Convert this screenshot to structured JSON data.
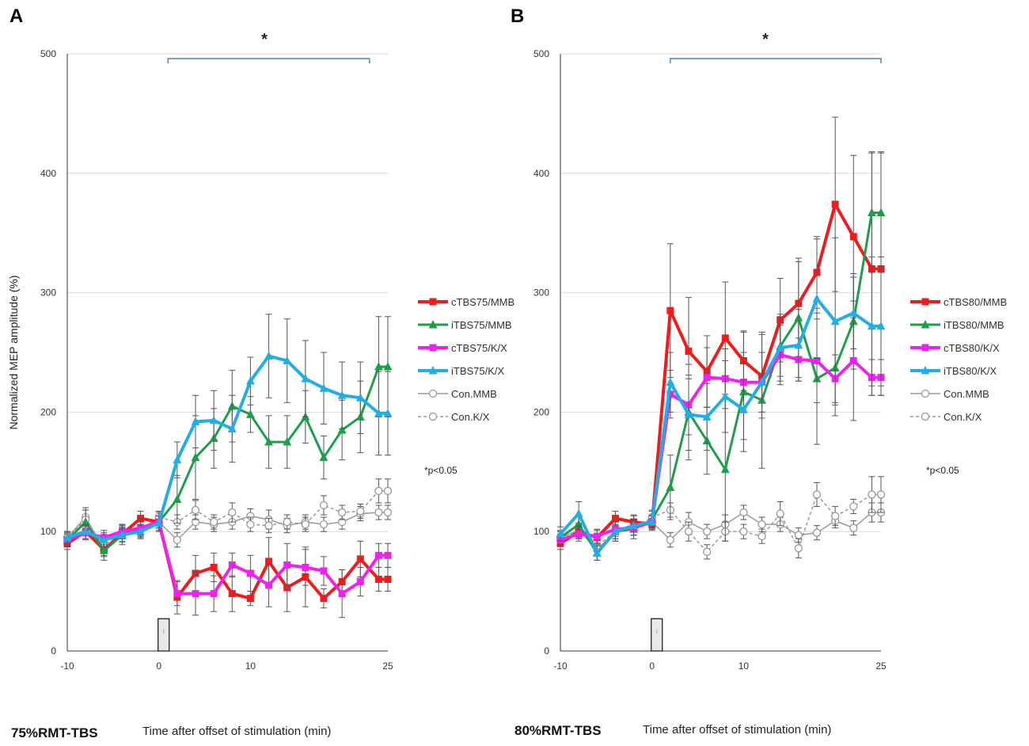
{
  "chart_data": [
    {
      "type": "line",
      "panel_label": "A",
      "condition_label": "75%RMT-TBS",
      "xlabel": "Time after offset of stimulation (min)",
      "ylabel": "Normalized MEP amplitude (%)",
      "ylim": [
        0,
        500
      ],
      "y_ticks": [
        0,
        100,
        200,
        300,
        400,
        500
      ],
      "xlim": [
        -10,
        25
      ],
      "x_ticks": [
        -10,
        0,
        10,
        25
      ],
      "grid": true,
      "significance": "*",
      "significance_range": [
        1,
        23
      ],
      "p_note": "*p<0.05",
      "legend_position": "right",
      "series": [
        {
          "name": "cTBS75/MMB",
          "color": "#ee1c1c",
          "marker": "square",
          "style": "solid",
          "width": 4,
          "x": [
            -10,
            -8,
            -6,
            -4,
            -2,
            0,
            2,
            4,
            6,
            8,
            10,
            12,
            14,
            16,
            18,
            20,
            22,
            24,
            25
          ],
          "y": [
            90,
            100,
            85,
            98,
            111,
            108,
            45,
            65,
            70,
            48,
            44,
            75,
            53,
            62,
            44,
            58,
            77,
            60,
            60
          ],
          "err": [
            5,
            6,
            6,
            6,
            6,
            5,
            14,
            15,
            12,
            15,
            6,
            20,
            20,
            25,
            8,
            10,
            15,
            10,
            10
          ]
        },
        {
          "name": "iTBS75/MMB",
          "color": "#1e9e4a",
          "marker": "triangle",
          "style": "solid",
          "width": 3,
          "x": [
            -10,
            -8,
            -6,
            -4,
            -2,
            0,
            2,
            4,
            6,
            8,
            10,
            12,
            14,
            16,
            18,
            20,
            22,
            24,
            25
          ],
          "y": [
            93,
            108,
            84,
            97,
            103,
            108,
            127,
            162,
            178,
            205,
            198,
            175,
            175,
            196,
            162,
            185,
            196,
            238,
            238
          ],
          "err": [
            6,
            10,
            8,
            8,
            8,
            8,
            20,
            35,
            25,
            30,
            15,
            22,
            22,
            22,
            18,
            25,
            30,
            42,
            42
          ]
        },
        {
          "name": "cTBS75/K/X",
          "color": "#ee22ee",
          "marker": "square",
          "style": "solid",
          "width": 4,
          "x": [
            -10,
            -8,
            -6,
            -4,
            -2,
            0,
            2,
            4,
            6,
            8,
            10,
            12,
            14,
            16,
            18,
            20,
            22,
            24,
            25
          ],
          "y": [
            93,
            99,
            95,
            100,
            103,
            108,
            48,
            48,
            48,
            72,
            65,
            55,
            72,
            70,
            67,
            48,
            58,
            80,
            80
          ],
          "err": [
            5,
            6,
            6,
            6,
            6,
            5,
            10,
            18,
            15,
            10,
            15,
            18,
            18,
            15,
            12,
            20,
            12,
            10,
            10
          ]
        },
        {
          "name": "iTBS75/K/X",
          "color": "#22aee4",
          "marker": "triangle",
          "style": "solid",
          "width": 4,
          "x": [
            -10,
            -8,
            -6,
            -4,
            -2,
            0,
            2,
            4,
            6,
            8,
            10,
            12,
            14,
            16,
            18,
            20,
            22,
            24,
            25
          ],
          "y": [
            95,
            100,
            93,
            97,
            100,
            107,
            160,
            192,
            193,
            186,
            226,
            247,
            243,
            228,
            220,
            214,
            212,
            199,
            199
          ],
          "err": [
            5,
            6,
            6,
            6,
            6,
            6,
            15,
            22,
            25,
            28,
            20,
            35,
            35,
            32,
            30,
            28,
            30,
            35,
            35
          ]
        },
        {
          "name": "Con.MMB",
          "color": "#999999",
          "marker": "circle",
          "style": "solid",
          "width": 1.5,
          "x": [
            -10,
            -8,
            -6,
            -4,
            -2,
            0,
            2,
            4,
            6,
            8,
            10,
            12,
            14,
            16,
            18,
            20,
            22,
            24,
            25
          ],
          "y": [
            95,
            112,
            85,
            100,
            103,
            108,
            93,
            108,
            106,
            108,
            113,
            110,
            105,
            108,
            106,
            108,
            115,
            116,
            116
          ],
          "err": [
            5,
            8,
            5,
            6,
            6,
            5,
            6,
            6,
            6,
            6,
            6,
            8,
            6,
            6,
            6,
            6,
            6,
            6,
            6
          ]
        },
        {
          "name": "Con.K/X",
          "color": "#999999",
          "marker": "circle",
          "style": "dashed",
          "width": 1.5,
          "x": [
            -10,
            -8,
            -6,
            -4,
            -2,
            0,
            2,
            4,
            6,
            8,
            10,
            12,
            14,
            16,
            18,
            20,
            22,
            24,
            25
          ],
          "y": [
            95,
            110,
            88,
            100,
            102,
            112,
            108,
            118,
            108,
            116,
            106,
            105,
            108,
            106,
            122,
            116,
            117,
            134,
            134
          ],
          "err": [
            5,
            8,
            5,
            6,
            6,
            5,
            6,
            8,
            6,
            8,
            6,
            6,
            6,
            6,
            8,
            6,
            6,
            10,
            10
          ]
        }
      ]
    },
    {
      "type": "line",
      "panel_label": "B",
      "condition_label": "80%RMT-TBS",
      "xlabel": "Time after offset of stimulation (min)",
      "ylabel": "",
      "ylim": [
        0,
        500
      ],
      "y_ticks": [
        0,
        100,
        200,
        300,
        400,
        500
      ],
      "xlim": [
        -10,
        25
      ],
      "x_ticks": [
        -10,
        0,
        10,
        25
      ],
      "grid": true,
      "significance": "*",
      "significance_range": [
        2,
        25
      ],
      "p_note": "*p<0.05",
      "legend_position": "right",
      "series": [
        {
          "name": "cTBS80/MMB",
          "color": "#ee1c1c",
          "marker": "square",
          "style": "solid",
          "width": 4,
          "x": [
            -10,
            -8,
            -6,
            -4,
            -2,
            0,
            2,
            4,
            6,
            8,
            10,
            12,
            14,
            16,
            18,
            20,
            22,
            24,
            25
          ],
          "y": [
            90,
            100,
            95,
            111,
            108,
            106,
            285,
            251,
            234,
            262,
            243,
            230,
            277,
            291,
            317,
            374,
            347,
            320,
            320
          ],
          "err": [
            5,
            6,
            6,
            6,
            6,
            5,
            56,
            45,
            30,
            47,
            25,
            35,
            35,
            35,
            30,
            73,
            68,
            98,
            98
          ]
        },
        {
          "name": "iTBS80/MMB",
          "color": "#1e9e4a",
          "marker": "triangle",
          "style": "solid",
          "width": 3,
          "x": [
            -10,
            -8,
            -6,
            -4,
            -2,
            0,
            2,
            4,
            6,
            8,
            10,
            12,
            14,
            16,
            18,
            20,
            22,
            24,
            25
          ],
          "y": [
            95,
            106,
            82,
            100,
            102,
            110,
            137,
            200,
            176,
            152,
            217,
            210,
            255,
            279,
            228,
            237,
            276,
            367,
            367
          ],
          "err": [
            6,
            8,
            6,
            8,
            8,
            8,
            27,
            40,
            28,
            60,
            50,
            57,
            25,
            50,
            55,
            40,
            40,
            50,
            50
          ]
        },
        {
          "name": "cTBS80/K/X",
          "color": "#ee22ee",
          "marker": "square",
          "style": "solid",
          "width": 4,
          "x": [
            -10,
            -8,
            -6,
            -4,
            -2,
            0,
            2,
            4,
            6,
            8,
            10,
            12,
            14,
            16,
            18,
            20,
            22,
            24,
            25
          ],
          "y": [
            93,
            98,
            96,
            102,
            103,
            108,
            215,
            206,
            229,
            228,
            225,
            225,
            248,
            244,
            243,
            228,
            243,
            229,
            229
          ],
          "err": [
            5,
            6,
            6,
            6,
            6,
            5,
            20,
            25,
            25,
            25,
            25,
            25,
            25,
            18,
            35,
            20,
            50,
            15,
            15
          ]
        },
        {
          "name": "iTBS80/K/X",
          "color": "#22aee4",
          "marker": "triangle",
          "style": "solid",
          "width": 4,
          "x": [
            -10,
            -8,
            -6,
            -4,
            -2,
            0,
            2,
            4,
            6,
            8,
            10,
            12,
            14,
            16,
            18,
            20,
            22,
            24,
            25
          ],
          "y": [
            98,
            115,
            82,
            100,
            105,
            108,
            225,
            198,
            196,
            213,
            202,
            225,
            254,
            256,
            295,
            276,
            283,
            272,
            272
          ],
          "err": [
            6,
            10,
            6,
            8,
            8,
            6,
            25,
            30,
            28,
            30,
            25,
            25,
            28,
            30,
            50,
            70,
            30,
            58,
            58
          ]
        },
        {
          "name": "Con.MMB",
          "color": "#999999",
          "marker": "circle",
          "style": "solid",
          "width": 1.5,
          "x": [
            -10,
            -8,
            -6,
            -4,
            -2,
            0,
            2,
            4,
            6,
            8,
            10,
            12,
            14,
            16,
            18,
            20,
            22,
            24,
            25
          ],
          "y": [
            95,
            101,
            85,
            100,
            103,
            108,
            93,
            108,
            100,
            106,
            116,
            106,
            106,
            97,
            99,
            109,
            103,
            116,
            116
          ],
          "err": [
            5,
            6,
            5,
            6,
            6,
            5,
            6,
            8,
            6,
            8,
            6,
            6,
            6,
            6,
            6,
            6,
            6,
            8,
            8
          ]
        },
        {
          "name": "Con.K/X",
          "color": "#999999",
          "marker": "circle",
          "style": "dashed",
          "width": 1.5,
          "x": [
            -10,
            -8,
            -6,
            -4,
            -2,
            0,
            2,
            4,
            6,
            8,
            10,
            12,
            14,
            16,
            18,
            20,
            22,
            24,
            25
          ],
          "y": [
            95,
            100,
            88,
            100,
            103,
            112,
            118,
            100,
            83,
            100,
            100,
            96,
            115,
            86,
            131,
            113,
            121,
            131,
            131
          ],
          "err": [
            5,
            6,
            5,
            6,
            6,
            5,
            6,
            8,
            6,
            8,
            6,
            6,
            10,
            8,
            10,
            8,
            6,
            15,
            15
          ]
        }
      ]
    }
  ]
}
